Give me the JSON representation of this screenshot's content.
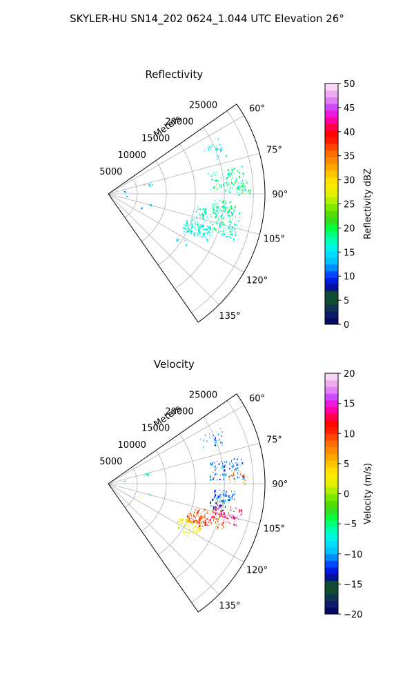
{
  "figure_title": "SKYLER-HU  SN14_202  0624_1.044 UTC Elevation 26°",
  "chart_data": [
    {
      "type": "polar-sector-scatter",
      "title": "Reflectivity",
      "radial_label": "Meters",
      "radial_ticks": [
        "5000",
        "10000",
        "15000",
        "20000",
        "25000"
      ],
      "radial_tick_values": [
        5000,
        10000,
        15000,
        20000,
        25000
      ],
      "rmax": 27000,
      "theta_range_deg": [
        55,
        145
      ],
      "theta_ticks": [
        "60°",
        "75°",
        "90°",
        "105°",
        "120°",
        "135°"
      ],
      "theta_tick_values": [
        60,
        75,
        90,
        105,
        120,
        135
      ],
      "grid": true,
      "colorbar": {
        "label": "Reflectivity dBZ",
        "min": 0,
        "max": 50,
        "ticks": [
          "0",
          "5",
          "10",
          "15",
          "20",
          "25",
          "30",
          "35",
          "40",
          "45",
          "50"
        ],
        "tick_values": [
          0,
          5,
          10,
          15,
          20,
          25,
          30,
          35,
          40,
          45,
          50
        ]
      },
      "clusters": [
        {
          "theta_deg": 66,
          "r_m": 19500,
          "d_theta": 3,
          "d_r": 2000,
          "value": 15,
          "spread": 2,
          "n": 18
        },
        {
          "theta_deg": 70,
          "r_m": 20500,
          "d_theta": 2,
          "d_r": 1000,
          "value": 14,
          "spread": 2,
          "n": 6
        },
        {
          "theta_deg": 83,
          "r_m": 20500,
          "d_theta": 5,
          "d_r": 3000,
          "value": 18,
          "spread": 3,
          "n": 90
        },
        {
          "theta_deg": 87,
          "r_m": 22500,
          "d_theta": 3,
          "d_r": 2000,
          "value": 19,
          "spread": 3,
          "n": 30
        },
        {
          "theta_deg": 96,
          "r_m": 20000,
          "d_theta": 3,
          "d_r": 2000,
          "value": 18,
          "spread": 3,
          "n": 60
        },
        {
          "theta_deg": 104,
          "r_m": 19000,
          "d_theta": 6,
          "d_r": 4000,
          "value": 17,
          "spread": 3,
          "n": 150
        },
        {
          "theta_deg": 112,
          "r_m": 16500,
          "d_theta": 4,
          "d_r": 2500,
          "value": 16,
          "spread": 2,
          "n": 100
        },
        {
          "theta_deg": 122,
          "r_m": 15000,
          "d_theta": 2,
          "d_r": 1500,
          "value": 14,
          "spread": 2,
          "n": 8
        },
        {
          "theta_deg": 76,
          "r_m": 7000,
          "d_theta": 1.5,
          "d_r": 800,
          "value": 14,
          "spread": 2,
          "n": 7
        },
        {
          "theta_deg": 80,
          "r_m": 2700,
          "d_theta": 1,
          "d_r": 300,
          "value": 13,
          "spread": 2,
          "n": 3
        },
        {
          "theta_deg": 96,
          "r_m": 3000,
          "d_theta": 1,
          "d_r": 300,
          "value": 14,
          "spread": 2,
          "n": 2
        },
        {
          "theta_deg": 104,
          "r_m": 7200,
          "d_theta": 1,
          "d_r": 400,
          "value": 13,
          "spread": 2,
          "n": 3
        },
        {
          "theta_deg": 112,
          "r_m": 6000,
          "d_theta": 1,
          "d_r": 300,
          "value": 12,
          "spread": 2,
          "n": 2
        }
      ]
    },
    {
      "type": "polar-sector-scatter",
      "title": "Velocity",
      "radial_label": "Meters",
      "radial_ticks": [
        "5000",
        "10000",
        "15000",
        "20000",
        "25000"
      ],
      "radial_tick_values": [
        5000,
        10000,
        15000,
        20000,
        25000
      ],
      "rmax": 27000,
      "theta_range_deg": [
        55,
        145
      ],
      "theta_ticks": [
        "60°",
        "75°",
        "90°",
        "105°",
        "120°",
        "135°"
      ],
      "theta_tick_values": [
        60,
        75,
        90,
        105,
        120,
        135
      ],
      "grid": true,
      "colorbar": {
        "label": "Velocity (m/s)",
        "min": -20,
        "max": 20,
        "ticks": [
          "−20",
          "−15",
          "−10",
          "−5",
          "0",
          "5",
          "10",
          "15",
          "20"
        ],
        "tick_values": [
          -20,
          -15,
          -10,
          -5,
          0,
          5,
          10,
          15,
          20
        ]
      },
      "clusters": [
        {
          "theta_deg": 66,
          "r_m": 19500,
          "d_theta": 3,
          "d_r": 2000,
          "value": -11,
          "spread": 2,
          "n": 18
        },
        {
          "theta_deg": 70,
          "r_m": 20500,
          "d_theta": 2,
          "d_r": 1000,
          "value": -11,
          "spread": 1,
          "n": 6
        },
        {
          "theta_deg": 83,
          "r_m": 20500,
          "d_theta": 5,
          "d_r": 3000,
          "value": -11,
          "spread": 2,
          "n": 90
        },
        {
          "theta_deg": 87,
          "r_m": 22500,
          "d_theta": 3,
          "d_r": 2000,
          "value": 7,
          "spread": 4,
          "n": 20
        },
        {
          "theta_deg": 96,
          "r_m": 20000,
          "d_theta": 3,
          "d_r": 2000,
          "value": -11,
          "spread": 2,
          "n": 60
        },
        {
          "theta_deg": 101,
          "r_m": 19000,
          "d_theta": 3,
          "d_r": 1500,
          "value": -15,
          "spread": 2,
          "n": 25
        },
        {
          "theta_deg": 104,
          "r_m": 21000,
          "d_theta": 4,
          "d_r": 2500,
          "value": 14,
          "spread": 3,
          "n": 70
        },
        {
          "theta_deg": 108,
          "r_m": 18500,
          "d_theta": 4,
          "d_r": 3000,
          "value": 9,
          "spread": 2,
          "n": 70
        },
        {
          "theta_deg": 112,
          "r_m": 16500,
          "d_theta": 3,
          "d_r": 2000,
          "value": 10,
          "spread": 3,
          "n": 60
        },
        {
          "theta_deg": 117,
          "r_m": 15500,
          "d_theta": 3,
          "d_r": 2000,
          "value": 3,
          "spread": 2,
          "n": 50
        },
        {
          "theta_deg": 122,
          "r_m": 15000,
          "d_theta": 2,
          "d_r": 1500,
          "value": 1,
          "spread": 2,
          "n": 8
        },
        {
          "theta_deg": 76,
          "r_m": 7000,
          "d_theta": 1.5,
          "d_r": 800,
          "value": -6,
          "spread": 1,
          "n": 7
        },
        {
          "theta_deg": 80,
          "r_m": 2700,
          "d_theta": 1,
          "d_r": 300,
          "value": -3,
          "spread": 1,
          "n": 3
        },
        {
          "theta_deg": 104,
          "r_m": 7200,
          "d_theta": 1,
          "d_r": 400,
          "value": -6,
          "spread": 1,
          "n": 3
        },
        {
          "theta_deg": 112,
          "r_m": 6000,
          "d_theta": 1,
          "d_r": 300,
          "value": 1,
          "spread": 1,
          "n": 2
        }
      ]
    }
  ]
}
